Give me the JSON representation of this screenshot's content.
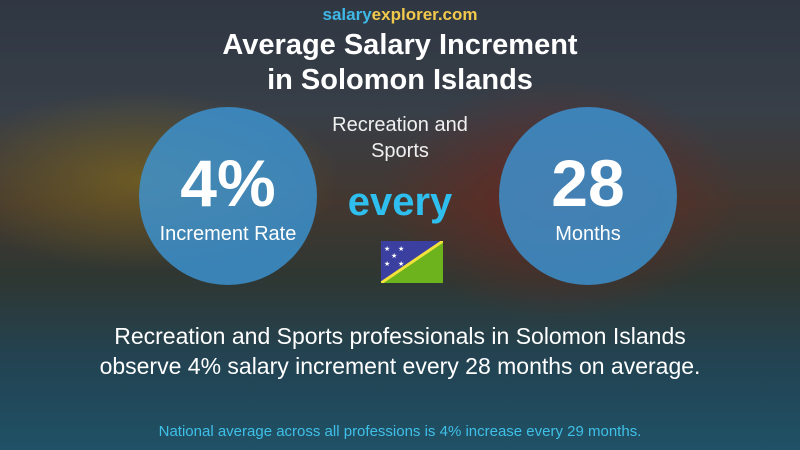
{
  "brand": {
    "part1": "salary",
    "part2": "explorer.com"
  },
  "title_line1": "Average Salary Increment",
  "title_line2": "in Solomon Islands",
  "subtitle_line1": "Recreation and",
  "subtitle_line2": "Sports",
  "increment": {
    "value": "4%",
    "label": "Increment Rate"
  },
  "connector": "every",
  "period": {
    "value": "28",
    "label": "Months"
  },
  "flag": {
    "country": "Solomon Islands",
    "colors": {
      "blue": "#3a3fa0",
      "green": "#6cb31e",
      "stripe": "#f3e23a"
    }
  },
  "description_line1": "Recreation and Sports professionals in Solomon Islands",
  "description_line2": "observe 4% salary increment every 28 months on average.",
  "national_note": "National average across all professions is 4% increase every 29 months.",
  "colors": {
    "circle": "#3c96d7",
    "accent": "#2fbfee"
  }
}
